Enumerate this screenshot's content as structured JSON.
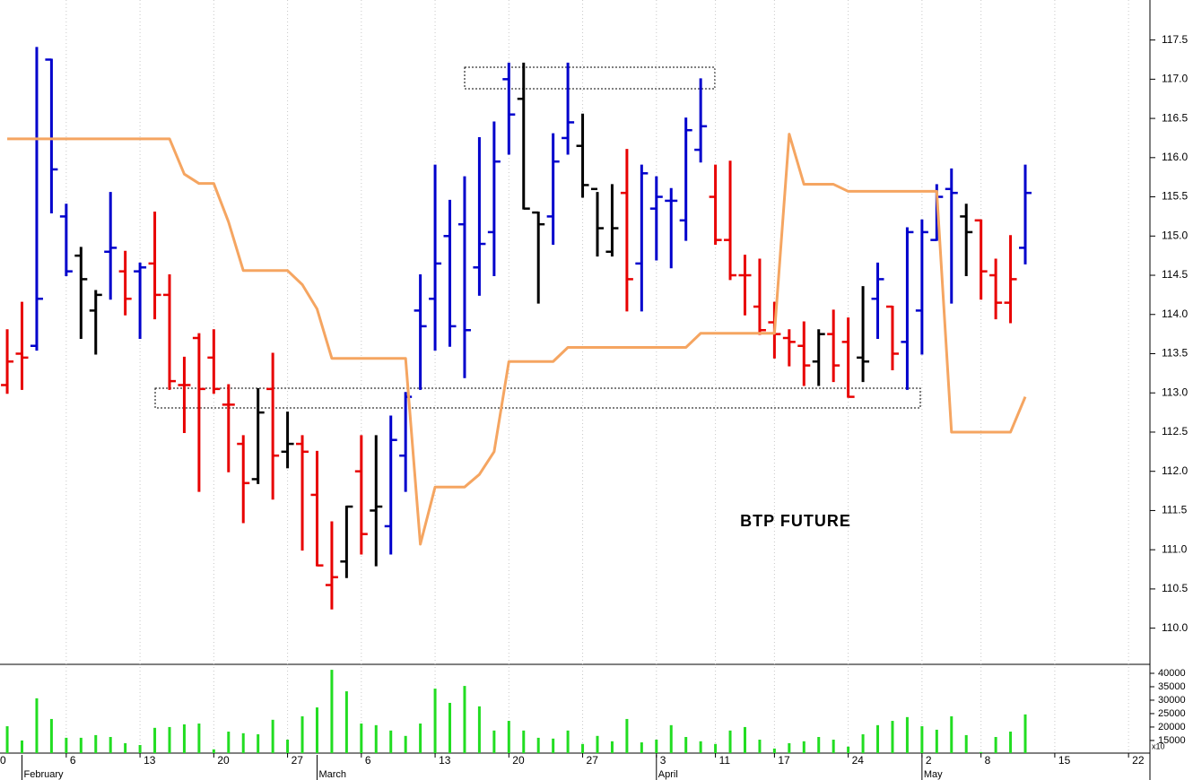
{
  "chart_data": {
    "type": "ohlc",
    "title": "BTP FUTURE",
    "x": [
      0,
      1,
      2,
      3,
      4,
      5,
      6,
      7,
      8,
      9,
      10,
      11,
      12,
      13,
      14,
      15,
      16,
      17,
      18,
      19,
      20,
      21,
      22,
      23,
      24,
      25,
      26,
      27,
      28,
      29,
      30,
      31,
      32,
      33,
      34,
      35,
      36,
      37,
      38,
      39,
      40,
      41,
      42,
      43,
      44,
      45,
      46,
      47,
      48,
      49,
      50,
      51,
      52,
      53,
      54,
      55,
      56,
      57,
      58,
      59,
      60,
      61,
      62,
      63,
      64,
      65,
      66,
      67,
      68,
      69
    ],
    "open": [
      113.1,
      113.5,
      113.6,
      117.25,
      115.25,
      114.75,
      114.05,
      114.8,
      114.55,
      114.55,
      114.65,
      114.25,
      113.1,
      113.7,
      113.45,
      112.85,
      112.35,
      111.9,
      113.05,
      112.25,
      112.35,
      111.7,
      110.55,
      110.85,
      112.0,
      111.5,
      111.3,
      112.2,
      114.05,
      114.2,
      115.0,
      115.15,
      114.6,
      115.05,
      117.0,
      116.75,
      115.3,
      115.25,
      116.25,
      116.15,
      115.6,
      114.8,
      115.55,
      114.65,
      115.35,
      115.45,
      115.2,
      116.1,
      115.5,
      114.95,
      114.5,
      114.1,
      113.9,
      113.7,
      113.6,
      113.4,
      113.75,
      113.65,
      113.45,
      114.2,
      114.1,
      113.65,
      114.05,
      114.95,
      115.6,
      115.25,
      115.2,
      114.5,
      114.15,
      114.85
    ],
    "high": [
      113.8,
      114.15,
      117.4,
      117.25,
      115.4,
      114.85,
      114.3,
      115.55,
      114.8,
      114.65,
      115.3,
      114.5,
      113.45,
      113.75,
      113.8,
      113.1,
      112.45,
      113.05,
      113.5,
      112.75,
      112.45,
      112.25,
      111.35,
      111.55,
      112.45,
      112.45,
      112.7,
      113.0,
      114.5,
      115.9,
      115.45,
      115.75,
      116.25,
      116.45,
      117.2,
      117.2,
      115.3,
      116.3,
      117.2,
      116.55,
      115.55,
      115.65,
      116.1,
      115.9,
      115.75,
      115.6,
      116.5,
      117.0,
      115.9,
      115.95,
      114.75,
      114.7,
      114.15,
      113.8,
      113.9,
      113.8,
      114.05,
      113.95,
      114.35,
      114.65,
      114.1,
      115.1,
      115.2,
      115.65,
      115.85,
      115.4,
      115.2,
      114.7,
      115.0,
      115.9
    ],
    "low": [
      113.0,
      113.05,
      113.55,
      115.3,
      114.5,
      113.7,
      113.5,
      114.2,
      114.0,
      113.7,
      113.95,
      113.05,
      112.5,
      111.75,
      113.0,
      112.0,
      111.35,
      111.85,
      111.65,
      112.05,
      111.0,
      110.8,
      110.25,
      110.65,
      110.95,
      110.8,
      110.95,
      111.75,
      113.05,
      113.55,
      113.6,
      113.2,
      114.25,
      114.5,
      116.05,
      115.35,
      114.15,
      114.9,
      116.05,
      115.5,
      114.75,
      114.75,
      114.05,
      114.05,
      114.7,
      114.6,
      114.95,
      115.95,
      114.9,
      114.45,
      114.0,
      113.75,
      113.45,
      113.35,
      113.1,
      113.1,
      113.15,
      112.95,
      113.15,
      113.7,
      113.3,
      113.05,
      113.5,
      114.95,
      114.15,
      114.5,
      114.2,
      113.95,
      113.9,
      114.65
    ],
    "close": [
      113.4,
      113.45,
      114.2,
      115.85,
      114.55,
      114.45,
      114.25,
      114.85,
      114.2,
      114.6,
      114.25,
      113.15,
      113.1,
      113.05,
      113.05,
      112.85,
      111.85,
      112.75,
      112.2,
      112.35,
      112.25,
      110.8,
      110.65,
      111.55,
      111.2,
      111.55,
      112.4,
      112.95,
      113.85,
      114.65,
      113.85,
      113.8,
      114.9,
      115.95,
      116.55,
      115.35,
      115.15,
      115.95,
      116.45,
      115.65,
      115.1,
      115.1,
      114.45,
      115.8,
      115.5,
      115.45,
      116.35,
      116.4,
      114.95,
      114.5,
      114.5,
      113.8,
      113.75,
      113.65,
      113.35,
      113.75,
      113.35,
      112.95,
      113.4,
      114.45,
      113.5,
      115.05,
      115.05,
      115.5,
      115.55,
      115.05,
      114.55,
      114.15,
      114.45,
      115.55
    ],
    "palette": {
      "blue": "#0000cc",
      "red": "#e80000",
      "black": "#000000"
    },
    "bar_colors": [
      "red",
      "red",
      "blue",
      "blue",
      "blue",
      "black",
      "black",
      "blue",
      "red",
      "blue",
      "red",
      "red",
      "red",
      "red",
      "red",
      "red",
      "red",
      "black",
      "red",
      "black",
      "red",
      "red",
      "red",
      "black",
      "red",
      "black",
      "blue",
      "blue",
      "blue",
      "blue",
      "blue",
      "blue",
      "blue",
      "blue",
      "blue",
      "black",
      "black",
      "blue",
      "blue",
      "black",
      "black",
      "black",
      "red",
      "blue",
      "blue",
      "blue",
      "blue",
      "blue",
      "red",
      "red",
      "red",
      "red",
      "red",
      "red",
      "red",
      "black",
      "red",
      "red",
      "black",
      "blue",
      "red",
      "blue",
      "blue",
      "blue",
      "blue",
      "black",
      "red",
      "red",
      "red",
      "blue"
    ],
    "line": {
      "color": "#f5a561",
      "values": [
        116.24,
        116.24,
        116.24,
        116.24,
        116.24,
        116.24,
        116.24,
        116.24,
        116.24,
        116.24,
        116.24,
        116.24,
        115.79,
        115.67,
        115.67,
        115.18,
        114.56,
        114.56,
        114.56,
        114.56,
        114.38,
        114.07,
        113.44,
        113.44,
        113.44,
        113.44,
        113.44,
        113.44,
        111.07,
        111.8,
        111.8,
        111.8,
        111.96,
        112.25,
        113.4,
        113.4,
        113.4,
        113.4,
        113.58,
        113.58,
        113.58,
        113.58,
        113.58,
        113.58,
        113.58,
        113.58,
        113.58,
        113.76,
        113.76,
        113.76,
        113.76,
        113.76,
        113.76,
        116.3,
        115.66,
        115.66,
        115.66,
        115.57,
        115.57,
        115.57,
        115.57,
        115.57,
        115.57,
        115.57,
        112.5,
        112.5,
        112.5,
        112.5,
        112.5,
        112.95
      ]
    },
    "xlim": [
      -0.49,
      77.45
    ],
    "xticks": [
      {
        "value": -1,
        "label": "0"
      },
      {
        "value": 4,
        "label": "6"
      },
      {
        "value": 9,
        "label": "13"
      },
      {
        "value": 14,
        "label": "20"
      },
      {
        "value": 19,
        "label": "27"
      },
      {
        "value": 24,
        "label": "6"
      },
      {
        "value": 29,
        "label": "13"
      },
      {
        "value": 34,
        "label": "20"
      },
      {
        "value": 39,
        "label": "27"
      },
      {
        "value": 44,
        "label": "3"
      },
      {
        "value": 48,
        "label": "11"
      },
      {
        "value": 52,
        "label": "17"
      },
      {
        "value": 57,
        "label": "24"
      },
      {
        "value": 62,
        "label": "2"
      },
      {
        "value": 66,
        "label": "8"
      },
      {
        "value": 71,
        "label": "15"
      },
      {
        "value": 76,
        "label": "22"
      }
    ],
    "month_ticks": [
      {
        "value": 1,
        "label": "February"
      },
      {
        "value": 21,
        "label": "March"
      },
      {
        "value": 44,
        "label": "April"
      },
      {
        "value": 62,
        "label": "May"
      }
    ],
    "ylim": [
      109.55,
      118.01
    ],
    "yticks": [
      {
        "value": 110,
        "label": "110.0"
      },
      {
        "value": 110.5,
        "label": "110.5"
      },
      {
        "value": 111,
        "label": "111.0"
      },
      {
        "value": 111.5,
        "label": "111.5"
      },
      {
        "value": 112,
        "label": "112.0"
      },
      {
        "value": 112.5,
        "label": "112.5"
      },
      {
        "value": 113,
        "label": "113.0"
      },
      {
        "value": 113.5,
        "label": "113.5"
      },
      {
        "value": 114,
        "label": "114.0"
      },
      {
        "value": 114.5,
        "label": "114.5"
      },
      {
        "value": 115,
        "label": "115.0"
      },
      {
        "value": 115.5,
        "label": "115.5"
      },
      {
        "value": 116,
        "label": "116.0"
      },
      {
        "value": 116.5,
        "label": "116.5"
      },
      {
        "value": 117,
        "label": "117.0"
      },
      {
        "value": 117.5,
        "label": "117.5"
      }
    ],
    "volume": {
      "type": "bar",
      "color": "#22dd22",
      "values": [
        20300,
        15000,
        30700,
        23000,
        16000,
        16000,
        17000,
        16300,
        14000,
        13300,
        19700,
        20000,
        21000,
        21300,
        11700,
        18300,
        17700,
        17300,
        22700,
        15300,
        24000,
        27300,
        41300,
        33300,
        21300,
        20700,
        18700,
        16700,
        21300,
        34300,
        29000,
        35300,
        27700,
        18700,
        22300,
        18700,
        16000,
        15700,
        18700,
        13700,
        16700,
        14700,
        23000,
        14300,
        15300,
        20700,
        16300,
        14700,
        13700,
        18700,
        20000,
        15300,
        12000,
        14000,
        14700,
        16300,
        15300,
        12700,
        17300,
        20700,
        22300,
        23700,
        20300,
        19000,
        24000,
        17000,
        10700,
        16300,
        18300,
        24700
      ],
      "ylim": [
        10300,
        43000
      ],
      "yticks": [
        15000,
        20000,
        25000,
        30000,
        35000,
        40000
      ],
      "multiplier_label": "x10"
    }
  }
}
